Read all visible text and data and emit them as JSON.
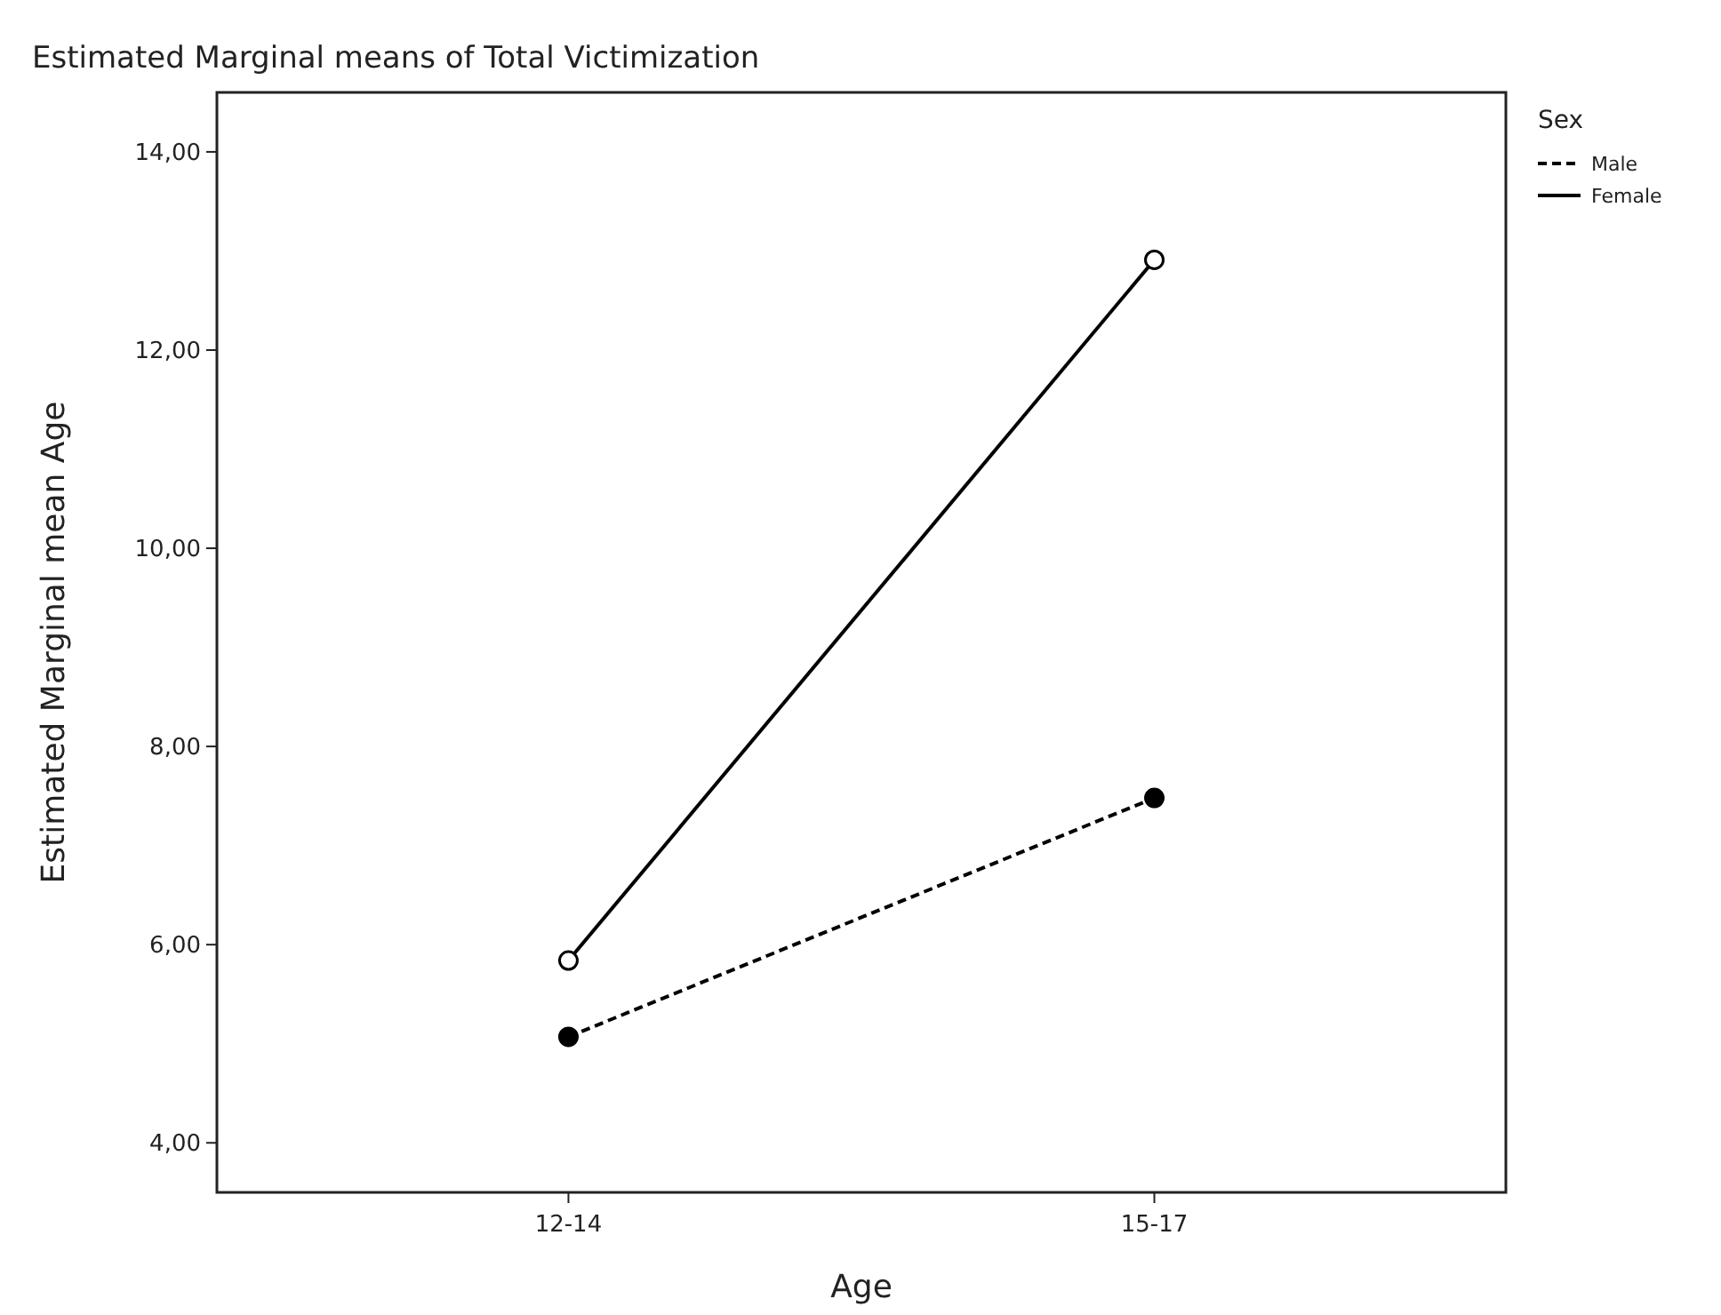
{
  "chart_data": {
    "type": "line",
    "title": "Estimated Marginal means of Total Victimization",
    "xlabel": "Age",
    "ylabel": "Estimated Marginal mean Age",
    "legend_title": "Sex",
    "categories": [
      "12-14",
      "15-17"
    ],
    "series": [
      {
        "name": "Male",
        "color": "#000000",
        "values": [
          5.07,
          7.48
        ],
        "line_style": "dashed"
      },
      {
        "name": "Female",
        "color": "#000000",
        "values": [
          5.84,
          12.91
        ],
        "line_style": "solid"
      }
    ],
    "ylim": [
      3.5,
      14.6
    ],
    "yticks": [
      {
        "value": 4,
        "label": "4,00"
      },
      {
        "value": 6,
        "label": "6,00"
      },
      {
        "value": 8,
        "label": "8,00"
      },
      {
        "value": 10,
        "label": "10,00"
      },
      {
        "value": 12,
        "label": "12,00"
      },
      {
        "value": 14,
        "label": "14,00"
      }
    ],
    "marker": "circle",
    "grid": false,
    "legend": "top right"
  }
}
